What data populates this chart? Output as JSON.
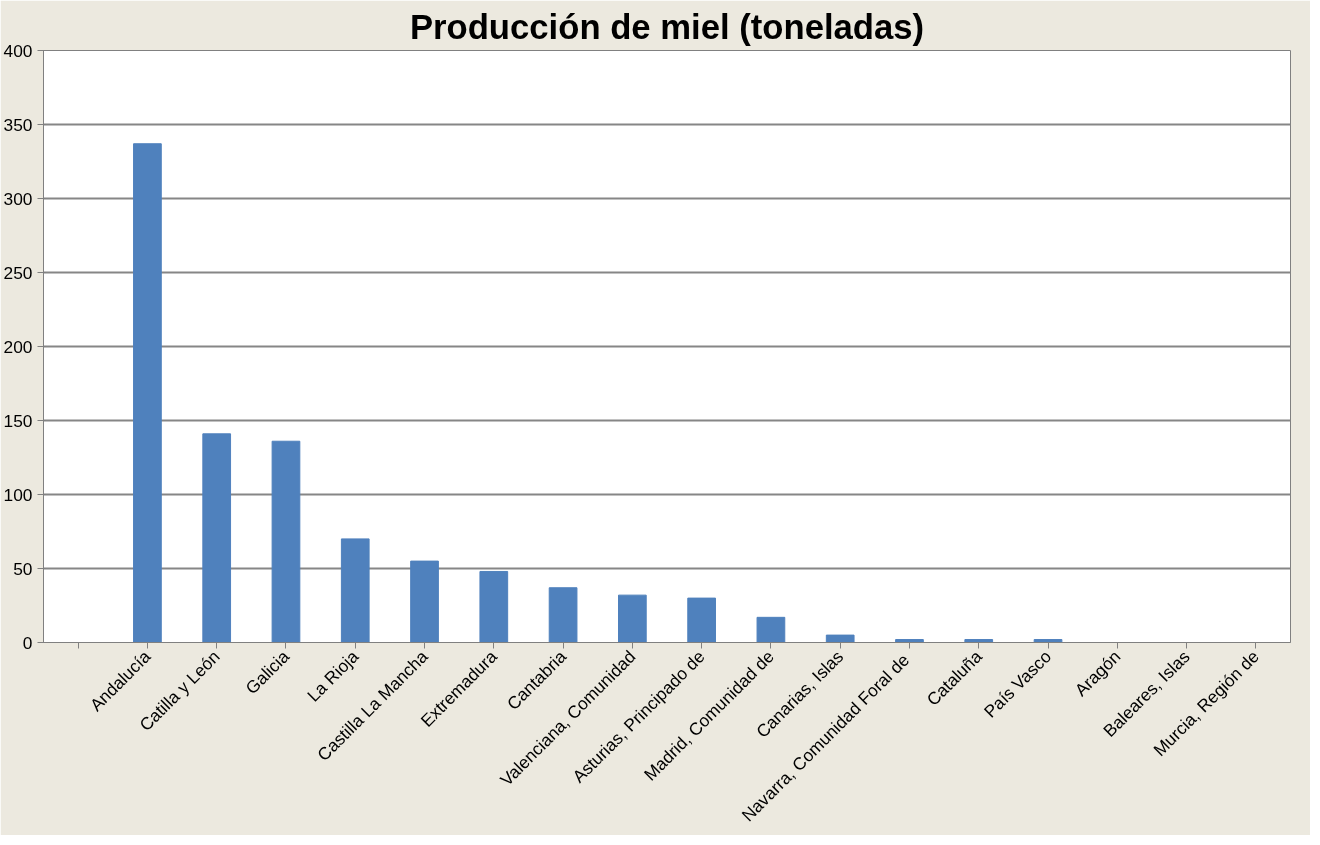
{
  "chart_data": {
    "type": "bar",
    "title": "Producción de miel (toneladas)",
    "categories": [
      null,
      "Andalucía",
      "Catilla y León",
      "Galicia",
      "La Rioja",
      "Castilla La Mancha",
      "Extremadura",
      "Cantabria",
      "Valenciana, Comunidad",
      "Asturias, Principado de",
      "Madrid, Comunidad de",
      "Canarias, Islas",
      "Navarra, Comunidad  Foral de",
      "Cataluña",
      "País Vasco",
      "Aragón",
      "Baleares, Islas",
      "Murcia, Región de"
    ],
    "values": [
      null,
      337,
      141,
      136,
      70,
      55,
      48,
      37,
      32,
      30,
      17,
      5,
      2,
      2,
      2,
      0,
      0,
      0
    ],
    "color": "#4f81bd",
    "ylim": [
      0,
      400
    ],
    "yticks": [
      0,
      50,
      100,
      150,
      200,
      250,
      300,
      350,
      400
    ],
    "grid": "y"
  }
}
